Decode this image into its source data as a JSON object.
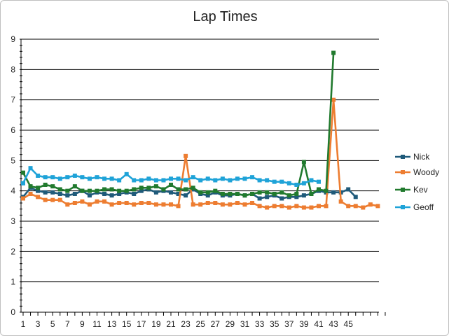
{
  "chart_data": {
    "type": "line",
    "title": "Lap Times",
    "xlabel": "",
    "ylabel": "",
    "ylim": [
      0,
      9
    ],
    "yticks": [
      0,
      1,
      2,
      3,
      4,
      5,
      6,
      7,
      8,
      9
    ],
    "x": [
      1,
      2,
      3,
      4,
      5,
      6,
      7,
      8,
      9,
      10,
      11,
      12,
      13,
      14,
      15,
      16,
      17,
      18,
      19,
      20,
      21,
      22,
      23,
      24,
      25,
      26,
      27,
      28,
      29,
      30,
      31,
      32,
      33,
      34,
      35,
      36,
      37,
      38,
      39,
      40,
      41,
      42,
      43,
      44,
      45,
      46,
      47,
      48,
      49,
      50
    ],
    "xtick_labels": [
      "1",
      "3",
      "5",
      "7",
      "9",
      "11",
      "13",
      "15",
      "17",
      "19",
      "21",
      "23",
      "25",
      "27",
      "29",
      "31",
      "33",
      "35",
      "37",
      "39",
      "41",
      "43",
      "45"
    ],
    "grid": "horizontal",
    "legend_position": "right",
    "series": [
      {
        "name": "Nick",
        "color": "#1f5a7a",
        "values": [
          3.8,
          4.1,
          4.0,
          3.95,
          3.95,
          3.9,
          3.85,
          3.9,
          4.0,
          3.85,
          3.95,
          3.9,
          3.85,
          3.9,
          3.95,
          3.9,
          4.0,
          4.05,
          3.95,
          4.0,
          3.95,
          3.9,
          3.85,
          4.05,
          3.9,
          3.85,
          3.95,
          3.85,
          3.85,
          3.9,
          3.85,
          3.9,
          3.75,
          3.8,
          3.85,
          3.75,
          3.8,
          3.8,
          3.85,
          3.9,
          4.0,
          3.95,
          3.95,
          3.95,
          4.05,
          3.8,
          null,
          null,
          null,
          null
        ]
      },
      {
        "name": "Woody",
        "color": "#ed7d31",
        "values": [
          3.75,
          3.9,
          3.8,
          3.7,
          3.7,
          3.7,
          3.55,
          3.6,
          3.65,
          3.55,
          3.65,
          3.65,
          3.55,
          3.6,
          3.6,
          3.55,
          3.6,
          3.6,
          3.55,
          3.55,
          3.55,
          3.5,
          5.15,
          3.55,
          3.55,
          3.6,
          3.6,
          3.55,
          3.55,
          3.6,
          3.55,
          3.6,
          3.5,
          3.45,
          3.5,
          3.5,
          3.45,
          3.5,
          3.45,
          3.45,
          3.5,
          3.5,
          7.0,
          3.65,
          3.5,
          3.5,
          3.45,
          3.55,
          3.5,
          null
        ]
      },
      {
        "name": "Kev",
        "color": "#217a2e",
        "values": [
          4.6,
          4.15,
          4.1,
          4.2,
          4.15,
          4.05,
          4.0,
          4.15,
          4.0,
          4.0,
          4.0,
          4.05,
          4.05,
          4.0,
          4.0,
          4.05,
          4.1,
          4.1,
          4.15,
          4.05,
          4.2,
          4.05,
          4.05,
          4.1,
          3.95,
          3.95,
          4.0,
          3.9,
          3.9,
          3.9,
          3.85,
          3.9,
          3.95,
          3.95,
          3.9,
          3.95,
          3.85,
          3.9,
          4.95,
          3.9,
          4.05,
          4.0,
          8.55,
          null,
          null,
          null,
          null,
          null,
          null,
          null
        ]
      },
      {
        "name": "Geoff",
        "color": "#1fa3d8",
        "values": [
          4.25,
          4.75,
          4.5,
          4.45,
          4.45,
          4.4,
          4.45,
          4.5,
          4.45,
          4.4,
          4.45,
          4.4,
          4.4,
          4.35,
          4.55,
          4.35,
          4.35,
          4.4,
          4.35,
          4.35,
          4.4,
          4.4,
          4.35,
          4.45,
          4.35,
          4.4,
          4.35,
          4.4,
          4.35,
          4.4,
          4.4,
          4.45,
          4.35,
          4.35,
          4.3,
          4.3,
          4.25,
          4.2,
          4.25,
          4.35,
          4.3,
          null,
          null,
          null,
          null,
          null,
          null,
          null,
          null,
          null
        ]
      }
    ]
  }
}
